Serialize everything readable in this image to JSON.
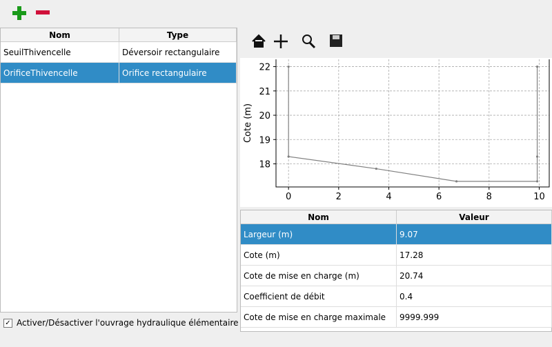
{
  "structures_table": {
    "columns": [
      "Nom",
      "Type"
    ],
    "rows": [
      [
        "SeuilThivencelle",
        "Déversoir rectangulaire"
      ],
      [
        "OrificeThivencelle",
        "Orifice rectangulaire"
      ]
    ]
  },
  "checkbox": {
    "label": "Activer/Désactiver l'ouvrage hydraulique élémentaire"
  },
  "chart_data": {
    "type": "line",
    "y_label": "Cote (m)",
    "x": [
      0,
      0,
      3.5,
      6.7,
      9.92,
      9.92,
      9.92
    ],
    "series": [
      {
        "color": "#808080",
        "values": [
          22,
          18.3,
          17.8,
          17.28,
          17.28,
          18.3,
          22
        ]
      }
    ],
    "xlim": [
      -0.5,
      10.4
    ],
    "ylim": [
      17.05,
      22.3
    ],
    "xticks": [
      0,
      2,
      4,
      6,
      8,
      10
    ],
    "yticks": [
      18,
      19,
      20,
      21,
      22
    ],
    "grid": true
  },
  "params_table": {
    "columns": [
      "Nom",
      "Valeur"
    ],
    "rows": [
      [
        "Largeur (m)",
        "9.07"
      ],
      [
        "Cote (m)",
        "17.28"
      ],
      [
        "Cote de mise en charge (m)",
        "20.74"
      ],
      [
        "Coefficient de débit",
        "0.4"
      ],
      [
        "Cote de mise en charge maximale",
        "9999.999"
      ]
    ]
  }
}
